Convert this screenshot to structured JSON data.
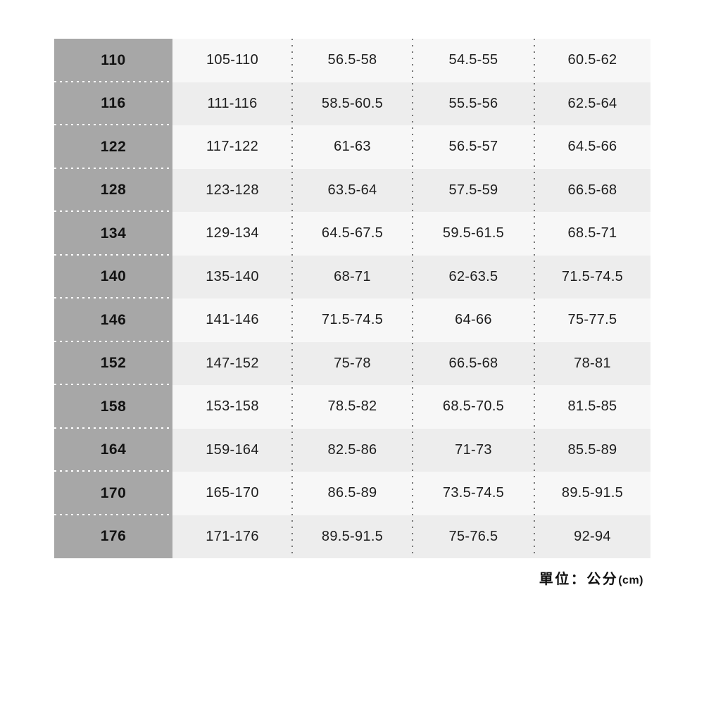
{
  "unit_note": {
    "label": "單位：公分",
    "suffix": "(cm)"
  },
  "colors": {
    "page_background": "#ffffff",
    "size_column_bg": "#a7a7a7",
    "row_light_bg": "#f7f7f7",
    "row_dark_bg": "#ededed",
    "value_text": "#1e1e1e",
    "size_text": "#121212",
    "column_divider_dots": "#787878",
    "row_divider_dots": "#ffffff"
  },
  "chart_data": {
    "type": "table",
    "title": "",
    "columns_visible_headers": [],
    "rows": [
      [
        "110",
        "105-110",
        "56.5-58",
        "54.5-55",
        "60.5-62"
      ],
      [
        "116",
        "111-116",
        "58.5-60.5",
        "55.5-56",
        "62.5-64"
      ],
      [
        "122",
        "117-122",
        "61-63",
        "56.5-57",
        "64.5-66"
      ],
      [
        "128",
        "123-128",
        "63.5-64",
        "57.5-59",
        "66.5-68"
      ],
      [
        "134",
        "129-134",
        "64.5-67.5",
        "59.5-61.5",
        "68.5-71"
      ],
      [
        "140",
        "135-140",
        "68-71",
        "62-63.5",
        "71.5-74.5"
      ],
      [
        "146",
        "141-146",
        "71.5-74.5",
        "64-66",
        "75-77.5"
      ],
      [
        "152",
        "147-152",
        "75-78",
        "66.5-68",
        "78-81"
      ],
      [
        "158",
        "153-158",
        "78.5-82",
        "68.5-70.5",
        "81.5-85"
      ],
      [
        "164",
        "159-164",
        "82.5-86",
        "71-73",
        "85.5-89"
      ],
      [
        "170",
        "165-170",
        "86.5-89",
        "73.5-74.5",
        "89.5-91.5"
      ],
      [
        "176",
        "171-176",
        "89.5-91.5",
        "75-76.5",
        "92-94"
      ]
    ],
    "unit": "單位：公分(cm)",
    "layout": {
      "row_shading": "alternating",
      "size_column_style": "solid gray with white dotted row separators",
      "column_separators": "gray dotted vertical lines between value columns"
    }
  }
}
